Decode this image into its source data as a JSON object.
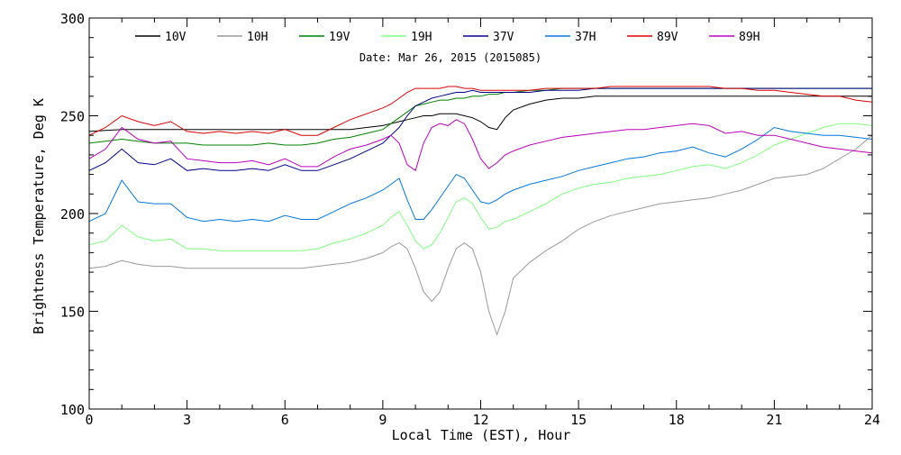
{
  "chart_data": {
    "type": "line",
    "subtitle": "Date: Mar 26, 2015 (2015085)",
    "xlabel": "Local Time (EST), Hour",
    "ylabel": "Brightness Temperature, Deg K",
    "xlim": [
      0,
      24
    ],
    "ylim": [
      100,
      300
    ],
    "xticks": [
      0,
      3,
      6,
      9,
      12,
      15,
      18,
      21,
      24
    ],
    "yticks": [
      100,
      150,
      200,
      250,
      300
    ],
    "xtick_labels": [
      "0",
      "3",
      "6",
      "9",
      "12",
      "15",
      "18",
      "21",
      "24"
    ],
    "ytick_labels": [
      "100",
      "150",
      "200",
      "250",
      "300"
    ],
    "grid": false,
    "legend_position": "top",
    "x": [
      0,
      0.5,
      1,
      1.5,
      2,
      2.5,
      3,
      3.5,
      4,
      4.5,
      5,
      5.5,
      6,
      6.5,
      7,
      7.5,
      8,
      8.5,
      9,
      9.25,
      9.5,
      9.75,
      10,
      10.25,
      10.5,
      10.75,
      11,
      11.25,
      11.5,
      11.75,
      12,
      12.25,
      12.5,
      12.75,
      13,
      13.5,
      14,
      14.5,
      15,
      15.5,
      16,
      16.5,
      17,
      17.5,
      18,
      18.5,
      19,
      19.5,
      20,
      20.5,
      21,
      21.5,
      22,
      22.5,
      23,
      23.5,
      24
    ],
    "series": [
      {
        "name": "10V",
        "color": "#000000",
        "values": [
          242,
          242.5,
          243,
          243,
          243,
          243,
          243,
          243,
          243,
          243,
          243,
          243,
          243,
          243,
          243,
          243,
          243,
          244,
          245,
          246,
          247,
          248,
          249,
          250,
          250,
          251,
          251,
          251,
          250,
          249,
          247,
          244,
          243,
          249,
          253,
          256,
          258,
          259,
          259,
          260,
          260,
          260,
          260,
          260,
          260,
          260,
          260,
          260,
          260,
          260,
          260,
          260,
          260,
          260,
          260,
          260,
          260
        ]
      },
      {
        "name": "10H",
        "color": "#999999",
        "values": [
          172,
          173,
          176,
          174,
          173,
          173,
          172,
          172,
          172,
          172,
          172,
          172,
          172,
          172,
          173,
          174,
          175,
          177,
          180,
          183,
          185,
          182,
          172,
          160,
          155,
          160,
          172,
          182,
          185,
          182,
          170,
          150,
          138,
          150,
          167,
          175,
          181,
          186,
          192,
          196,
          199,
          201,
          203,
          205,
          206,
          207,
          208,
          210,
          212,
          215,
          218,
          219,
          220,
          223,
          228,
          233,
          240
        ]
      },
      {
        "name": "19V",
        "color": "#008000",
        "values": [
          236,
          237,
          238,
          237,
          236,
          236,
          236,
          235,
          235,
          235,
          235,
          236,
          235,
          235,
          236,
          238,
          239,
          241,
          243,
          246,
          249,
          252,
          255,
          256,
          257,
          258,
          258,
          259,
          259,
          260,
          260,
          261,
          261,
          262,
          262,
          263,
          263,
          264,
          264,
          264,
          264,
          264,
          264,
          264,
          264,
          264,
          264,
          264,
          264,
          264,
          264,
          264,
          264,
          264,
          264,
          264,
          264
        ]
      },
      {
        "name": "19H",
        "color": "#7fff7f",
        "values": [
          184,
          186,
          194,
          188,
          186,
          187,
          182,
          182,
          181,
          181,
          181,
          181,
          181,
          181,
          182,
          185,
          187,
          190,
          194,
          198,
          201,
          194,
          186,
          182,
          184,
          190,
          198,
          206,
          208,
          205,
          198,
          192,
          193,
          196,
          197,
          201,
          205,
          210,
          213,
          215,
          216,
          218,
          219,
          220,
          222,
          224,
          225,
          223,
          226,
          230,
          235,
          238,
          241,
          244,
          246,
          246,
          245
        ]
      },
      {
        "name": "37V",
        "color": "#00008b",
        "values": [
          222,
          226,
          233,
          226,
          225,
          228,
          222,
          223,
          222,
          222,
          223,
          222,
          225,
          222,
          222,
          225,
          228,
          232,
          236,
          240,
          244,
          250,
          255,
          257,
          259,
          260,
          261,
          262,
          262,
          263,
          262,
          262,
          262,
          262,
          262,
          262,
          263,
          263,
          263,
          264,
          264,
          264,
          264,
          264,
          264,
          264,
          264,
          264,
          264,
          264,
          264,
          264,
          264,
          264,
          264,
          264,
          264
        ]
      },
      {
        "name": "37H",
        "color": "#0077dd",
        "values": [
          196,
          200,
          217,
          206,
          205,
          205,
          198,
          196,
          197,
          196,
          197,
          196,
          199,
          197,
          197,
          201,
          205,
          208,
          212,
          215,
          218,
          207,
          197,
          197,
          202,
          208,
          214,
          220,
          218,
          212,
          206,
          205,
          207,
          210,
          212,
          215,
          217,
          219,
          222,
          224,
          226,
          228,
          229,
          231,
          232,
          234,
          231,
          229,
          233,
          238,
          244,
          242,
          241,
          240,
          240,
          239,
          238
        ]
      },
      {
        "name": "89V",
        "color": "#dd0000",
        "values": [
          240,
          244,
          250,
          247,
          245,
          247,
          242,
          241,
          242,
          241,
          242,
          241,
          243,
          240,
          240,
          244,
          248,
          251,
          254,
          256,
          259,
          262,
          264,
          264,
          264,
          264,
          265,
          265,
          264,
          264,
          263,
          263,
          263,
          263,
          263,
          263,
          264,
          264,
          264,
          264,
          265,
          265,
          265,
          265,
          265,
          265,
          265,
          264,
          264,
          263,
          263,
          262,
          261,
          260,
          260,
          258,
          257
        ]
      },
      {
        "name": "89H",
        "color": "#bb00bb",
        "values": [
          228,
          233,
          244,
          238,
          236,
          237,
          228,
          227,
          226,
          226,
          227,
          225,
          228,
          224,
          224,
          229,
          233,
          235,
          238,
          240,
          236,
          225,
          222,
          236,
          244,
          246,
          245,
          248,
          246,
          238,
          228,
          223,
          226,
          230,
          232,
          235,
          237,
          239,
          240,
          241,
          242,
          243,
          243,
          244,
          245,
          246,
          245,
          241,
          242,
          240,
          240,
          238,
          236,
          234,
          233,
          232,
          231
        ]
      }
    ]
  }
}
